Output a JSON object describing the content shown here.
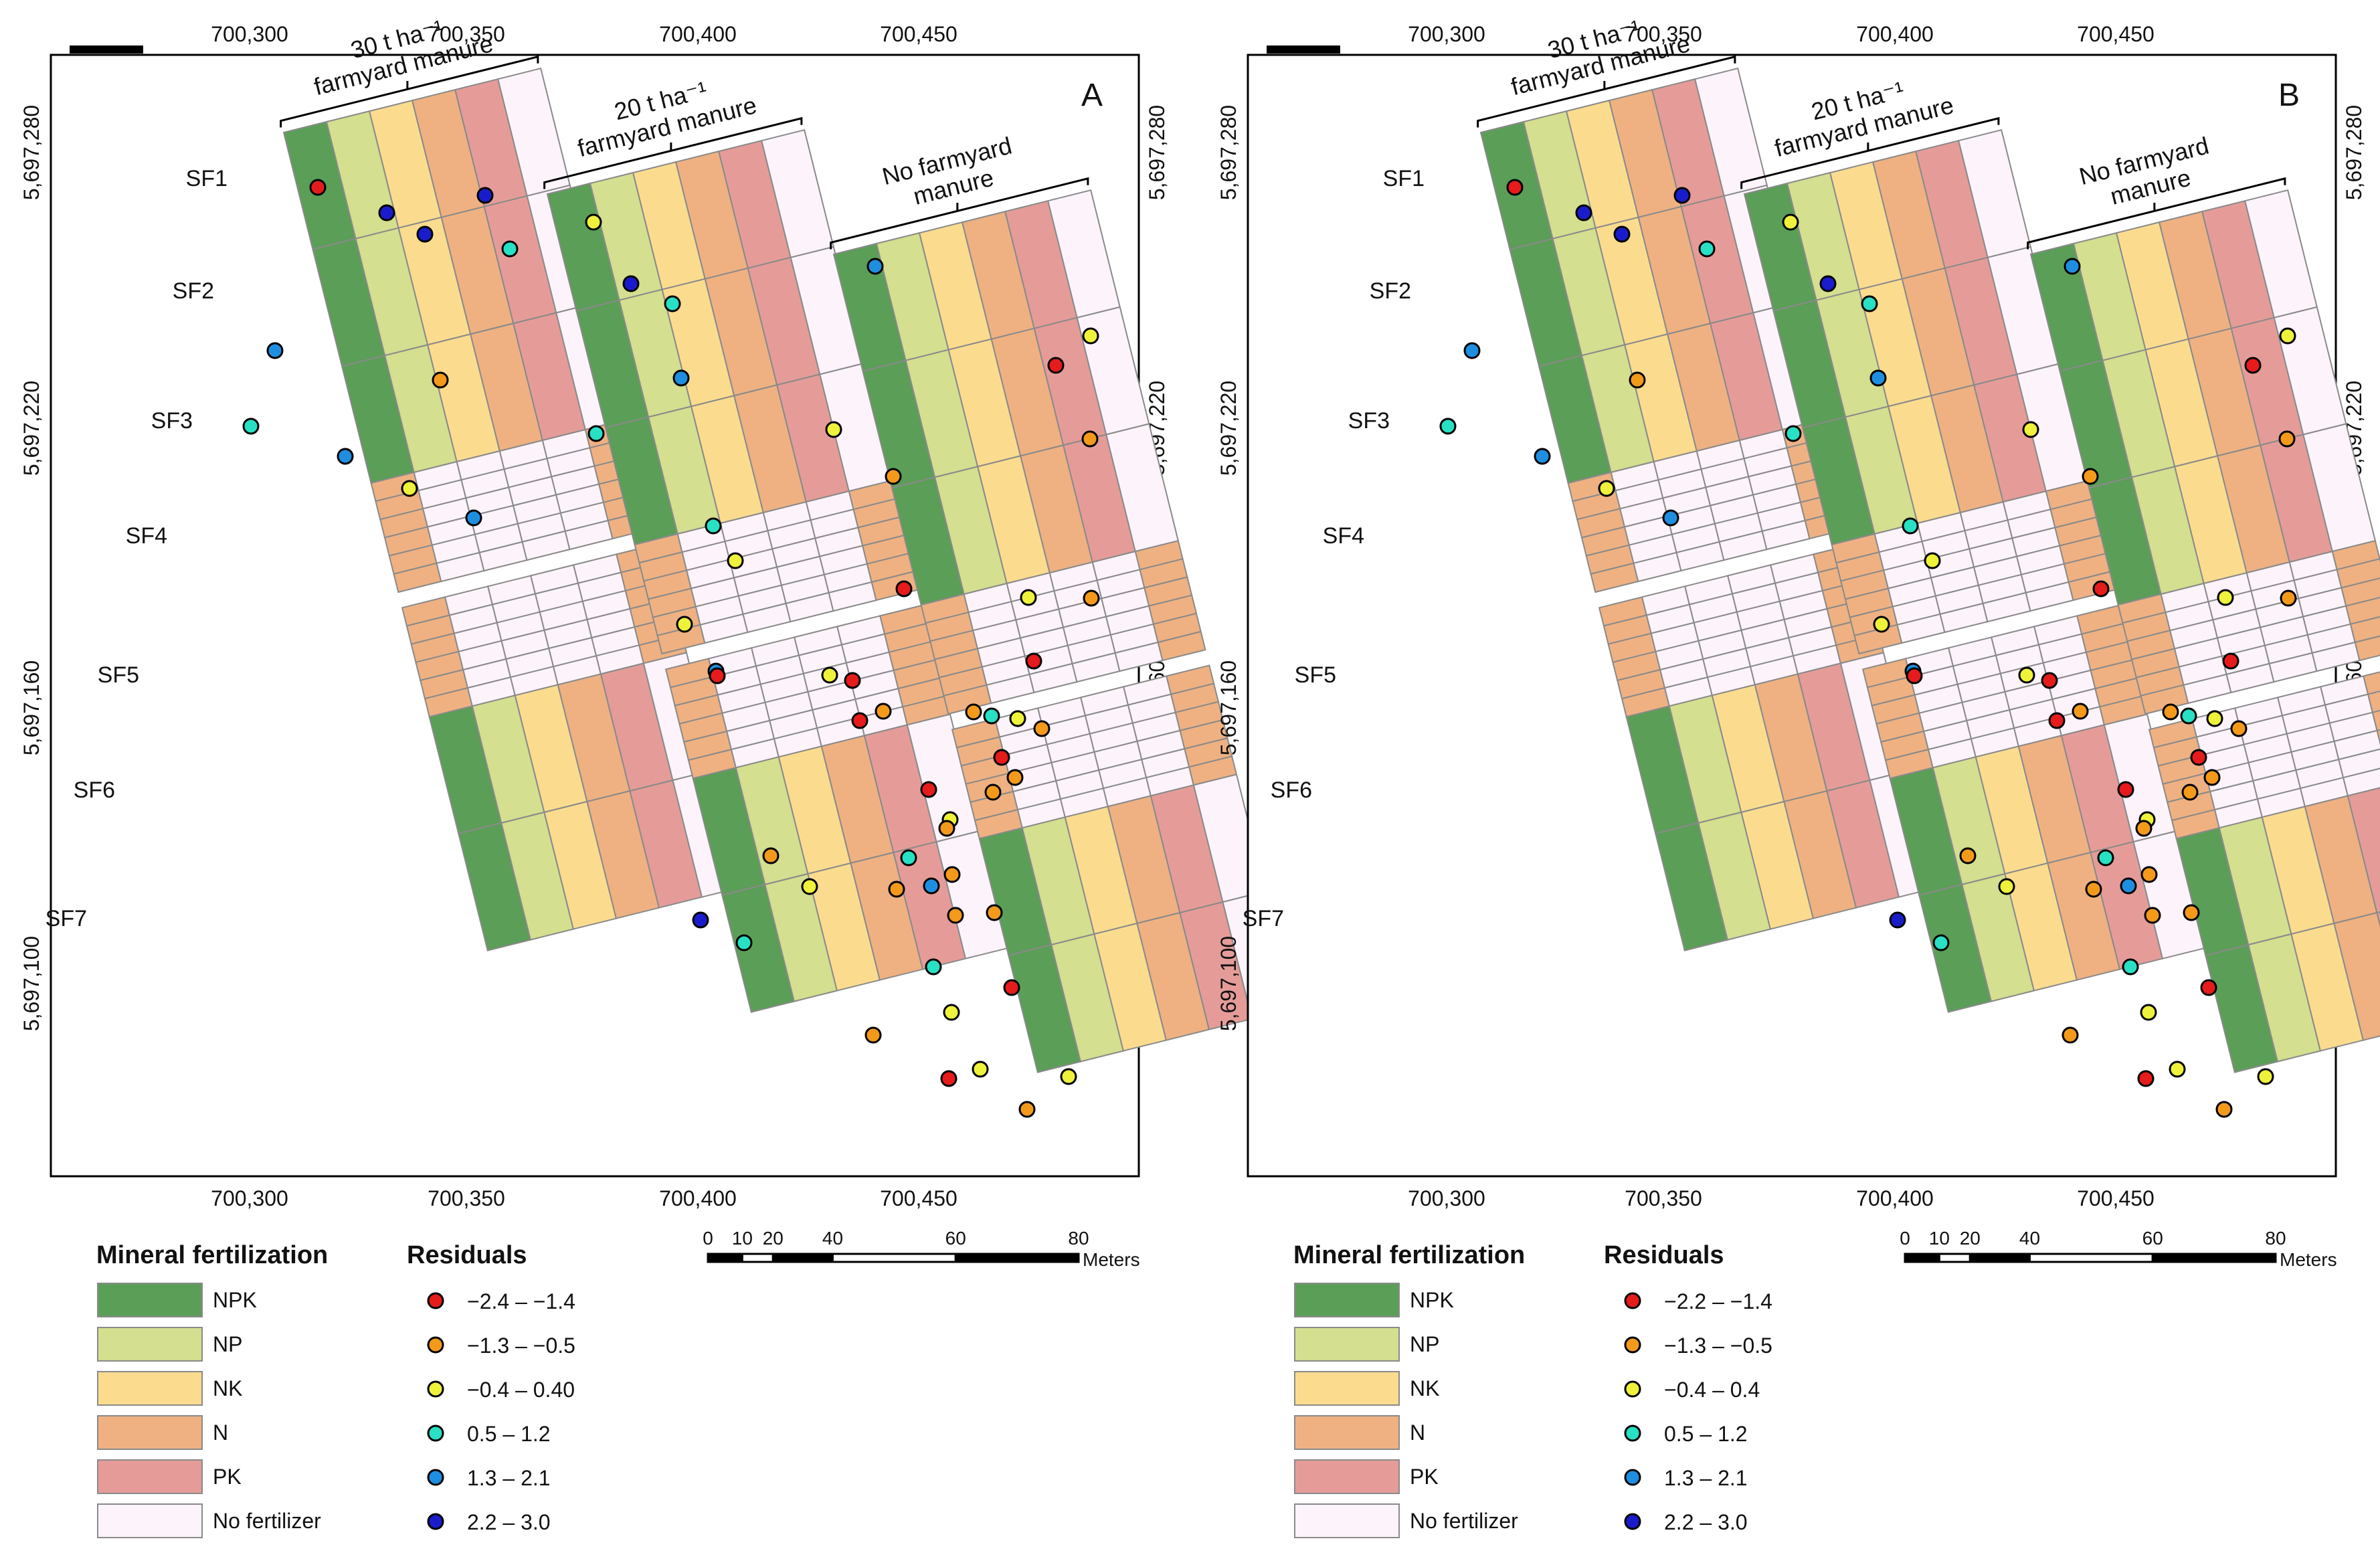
{
  "panels": [
    {
      "label": "A",
      "x_ticks": [
        "700,300",
        "700,350",
        "700,400",
        "700,450"
      ],
      "y_ticks": [
        "5,697,280",
        "5,697,220",
        "5,697,160",
        "5,697,100"
      ],
      "blocks": [
        {
          "title_line1": "30 t ha⁻¹",
          "title_line2": "farmyard manure"
        },
        {
          "title_line1": "20 t ha⁻¹",
          "title_line2": "farmyard manure"
        },
        {
          "title_line1": "No farmyard",
          "title_line2": "manure"
        }
      ],
      "subfields": [
        "SF1",
        "SF2",
        "SF3",
        "SF4",
        "SF5",
        "SF6",
        "SF7"
      ],
      "residual_classes": [
        "−2.4 – −1.4",
        "−1.3 – −0.5",
        "−0.4 – 0.40",
        "0.5 – 1.2",
        "1.3 – 2.1",
        "2.2 – 3.0"
      ]
    },
    {
      "label": "B",
      "x_ticks": [
        "700,300",
        "700,350",
        "700,400",
        "700,450"
      ],
      "y_ticks": [
        "5,697,280",
        "5,697,220",
        "5,697,160",
        "5,697,100"
      ],
      "blocks": [
        {
          "title_line1": "30 t ha⁻¹",
          "title_line2": "farmyard manure"
        },
        {
          "title_line1": "20 t ha⁻¹",
          "title_line2": "farmyard manure"
        },
        {
          "title_line1": "No farmyard",
          "title_line2": "manure"
        }
      ],
      "subfields": [
        "SF1",
        "SF2",
        "SF3",
        "SF4",
        "SF5",
        "SF6",
        "SF7"
      ],
      "residual_classes": [
        "−2.2 – −1.4",
        "−1.3 – −0.5",
        "−0.4 – 0.4",
        "0.5 – 1.2",
        "1.3 – 2.1",
        "2.2 – 3.0"
      ]
    }
  ],
  "legend": {
    "mineral_title": "Mineral fertilization",
    "residuals_title": "Residuals",
    "mineral_items": [
      "NPK",
      "NP",
      "NK",
      "N",
      "PK",
      "No fertilizer"
    ],
    "scalebar_ticks": [
      "0",
      "10",
      "20",
      "40",
      "60",
      "80"
    ],
    "scalebar_unit": "Meters"
  },
  "colors": {
    "NPK": "#5b9e57",
    "NP": "#d4df8f",
    "NK": "#fbdc8f",
    "N": "#efb182",
    "PK": "#e59c98",
    "none": "#fdf3fb",
    "res": [
      "#e61b1b",
      "#f39a1b",
      "#eef23a",
      "#28e0c3",
      "#1e8fe0",
      "#1a1ccc"
    ]
  },
  "dot_classes": [
    0,
    5,
    5,
    5,
    3,
    4,
    1,
    3,
    4,
    2,
    4,
    2,
    5,
    3,
    4,
    3,
    3,
    2,
    2,
    4,
    0,
    4,
    2,
    0,
    2,
    1,
    1,
    0,
    1,
    2,
    0,
    2,
    0,
    1,
    0,
    1,
    3,
    1,
    1,
    2,
    0,
    1,
    0,
    2,
    1,
    1,
    1,
    2,
    0,
    2,
    1,
    2,
    0,
    1,
    3,
    1,
    1,
    4,
    3,
    2,
    1,
    5,
    3,
    1,
    2
  ]
}
